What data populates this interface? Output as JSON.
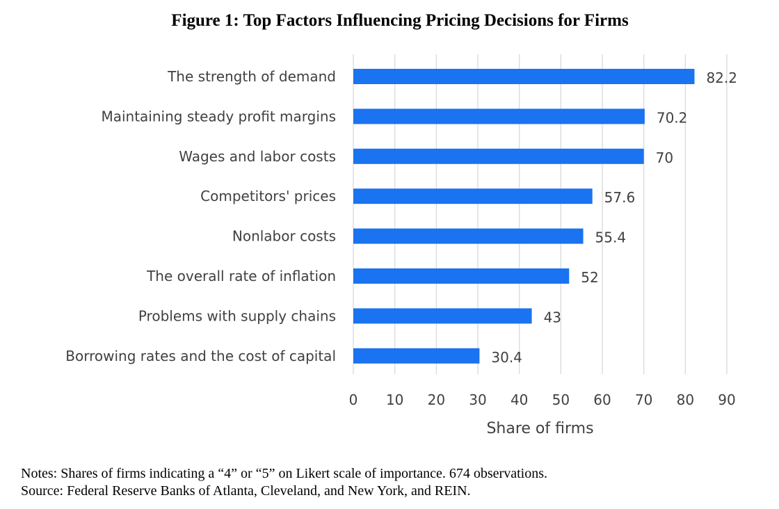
{
  "chart_data": {
    "type": "bar",
    "orientation": "horizontal",
    "title": "Figure 1: Top Factors Influencing Pricing Decisions for Firms",
    "categories": [
      "The strength of demand",
      "Maintaining steady profit margins",
      "Wages and labor costs",
      "Competitors' prices",
      "Nonlabor costs",
      "The overall rate of inflation",
      "Problems with supply chains",
      "Borrowing rates and the cost of capital"
    ],
    "values": [
      82.2,
      70.2,
      70,
      57.6,
      55.4,
      52,
      43,
      30.4
    ],
    "value_labels": [
      "82.2",
      "70.2",
      "70",
      "57.6",
      "55.4",
      "52",
      "43",
      "30.4"
    ],
    "xlabel": "Share of firms",
    "ylabel": "",
    "xlim": [
      0,
      90
    ],
    "xticks": [
      0,
      10,
      20,
      30,
      40,
      50,
      60,
      70,
      80,
      90
    ],
    "grid": "vertical",
    "legend": "none",
    "bar_color": "#1a73f0",
    "grid_color": "#d9d9d9",
    "text_color": "#404040"
  },
  "notes": {
    "line1": "Notes: Shares of firms indicating a “4” or “5” on Likert scale of importance. 674 observations.",
    "line2": "Source: Federal Reserve Banks of Atlanta, Cleveland, and New York, and REIN."
  }
}
